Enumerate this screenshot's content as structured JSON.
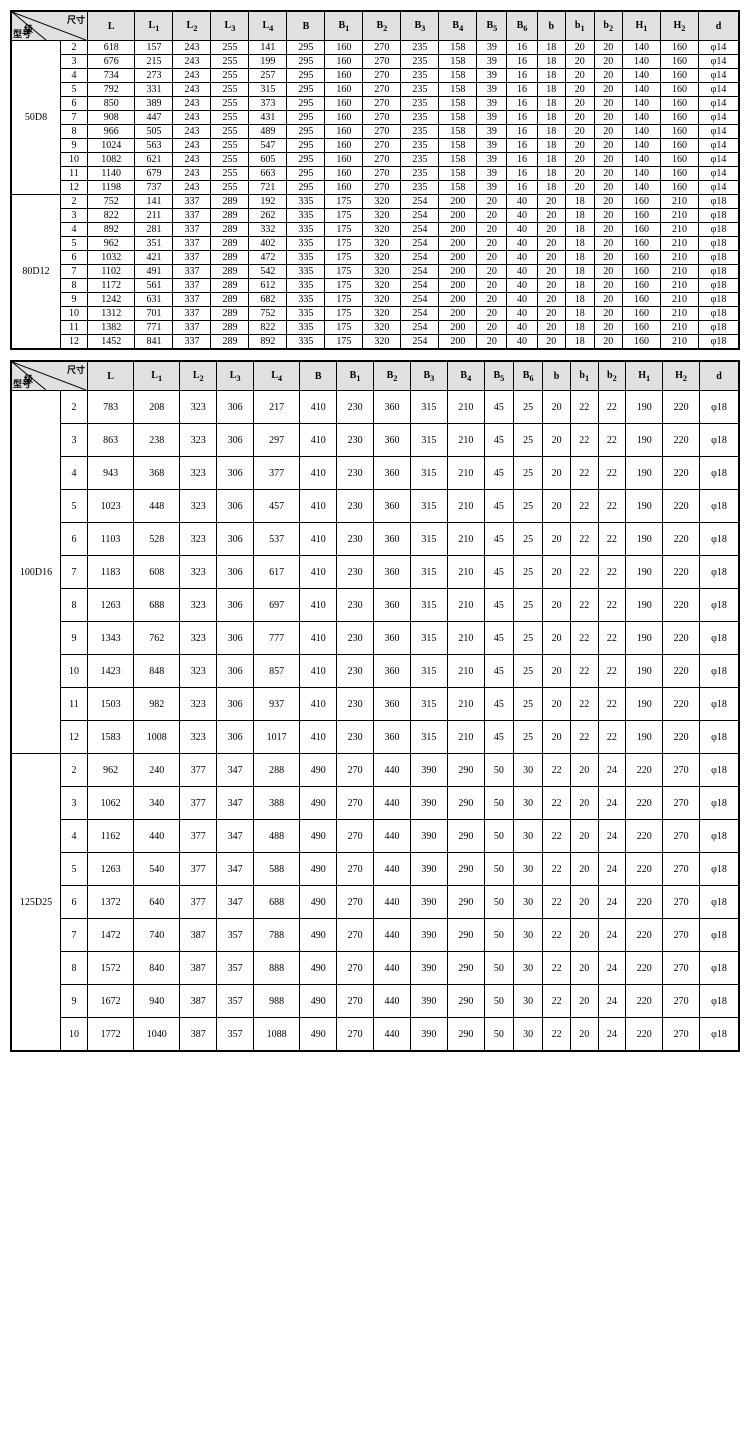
{
  "headers": {
    "diag": {
      "tr": "尺寸",
      "mid": "级",
      "bl": "型号",
      "stage": "数"
    },
    "cols": [
      "L",
      "L1",
      "L2",
      "L3",
      "L4",
      "B",
      "B1",
      "B2",
      "B3",
      "B4",
      "B5",
      "B6",
      "b",
      "b1",
      "b2",
      "H1",
      "H2",
      "d"
    ]
  },
  "table1": [
    {
      "model": "50D8",
      "stages": [
        2,
        3,
        4,
        5,
        6,
        7,
        8,
        9,
        10,
        11,
        12
      ],
      "rows": [
        [
          618,
          157,
          243,
          255,
          141,
          295,
          160,
          270,
          235,
          158,
          39,
          16,
          18,
          20,
          20,
          140,
          160,
          "φ14"
        ],
        [
          676,
          215,
          243,
          255,
          199,
          295,
          160,
          270,
          235,
          158,
          39,
          16,
          18,
          20,
          20,
          140,
          160,
          "φ14"
        ],
        [
          734,
          273,
          243,
          255,
          257,
          295,
          160,
          270,
          235,
          158,
          39,
          16,
          18,
          20,
          20,
          140,
          160,
          "φ14"
        ],
        [
          792,
          331,
          243,
          255,
          315,
          295,
          160,
          270,
          235,
          158,
          39,
          16,
          18,
          20,
          20,
          140,
          160,
          "φ14"
        ],
        [
          850,
          389,
          243,
          255,
          373,
          295,
          160,
          270,
          235,
          158,
          39,
          16,
          18,
          20,
          20,
          140,
          160,
          "φ14"
        ],
        [
          908,
          447,
          243,
          255,
          431,
          295,
          160,
          270,
          235,
          158,
          39,
          16,
          18,
          20,
          20,
          140,
          160,
          "φ14"
        ],
        [
          966,
          505,
          243,
          255,
          489,
          295,
          160,
          270,
          235,
          158,
          39,
          16,
          18,
          20,
          20,
          140,
          160,
          "φ14"
        ],
        [
          1024,
          563,
          243,
          255,
          547,
          295,
          160,
          270,
          235,
          158,
          39,
          16,
          18,
          20,
          20,
          140,
          160,
          "φ14"
        ],
        [
          1082,
          621,
          243,
          255,
          605,
          295,
          160,
          270,
          235,
          158,
          39,
          16,
          18,
          20,
          20,
          140,
          160,
          "φ14"
        ],
        [
          1140,
          679,
          243,
          255,
          663,
          295,
          160,
          270,
          235,
          158,
          39,
          16,
          18,
          20,
          20,
          140,
          160,
          "φ14"
        ],
        [
          1198,
          737,
          243,
          255,
          721,
          295,
          160,
          270,
          235,
          158,
          39,
          16,
          18,
          20,
          20,
          140,
          160,
          "φ14"
        ]
      ]
    },
    {
      "model": "80D12",
      "stages": [
        2,
        3,
        4,
        5,
        6,
        7,
        8,
        9,
        10,
        11,
        12
      ],
      "rows": [
        [
          752,
          141,
          337,
          289,
          192,
          335,
          175,
          320,
          254,
          200,
          20,
          40,
          20,
          18,
          20,
          160,
          210,
          "φ18"
        ],
        [
          822,
          211,
          337,
          289,
          262,
          335,
          175,
          320,
          254,
          200,
          20,
          40,
          20,
          18,
          20,
          160,
          210,
          "φ18"
        ],
        [
          892,
          281,
          337,
          289,
          332,
          335,
          175,
          320,
          254,
          200,
          20,
          40,
          20,
          18,
          20,
          160,
          210,
          "φ18"
        ],
        [
          962,
          351,
          337,
          289,
          402,
          335,
          175,
          320,
          254,
          200,
          20,
          40,
          20,
          18,
          20,
          160,
          210,
          "φ18"
        ],
        [
          1032,
          421,
          337,
          289,
          472,
          335,
          175,
          320,
          254,
          200,
          20,
          40,
          20,
          18,
          20,
          160,
          210,
          "φ18"
        ],
        [
          1102,
          491,
          337,
          289,
          542,
          335,
          175,
          320,
          254,
          200,
          20,
          40,
          20,
          18,
          20,
          160,
          210,
          "φ18"
        ],
        [
          1172,
          561,
          337,
          289,
          612,
          335,
          175,
          320,
          254,
          200,
          20,
          40,
          20,
          18,
          20,
          160,
          210,
          "φ18"
        ],
        [
          1242,
          631,
          337,
          289,
          682,
          335,
          175,
          320,
          254,
          200,
          20,
          40,
          20,
          18,
          20,
          160,
          210,
          "φ18"
        ],
        [
          1312,
          701,
          337,
          289,
          752,
          335,
          175,
          320,
          254,
          200,
          20,
          40,
          20,
          18,
          20,
          160,
          210,
          "φ18"
        ],
        [
          1382,
          771,
          337,
          289,
          822,
          335,
          175,
          320,
          254,
          200,
          20,
          40,
          20,
          18,
          20,
          160,
          210,
          "φ18"
        ],
        [
          1452,
          841,
          337,
          289,
          892,
          335,
          175,
          320,
          254,
          200,
          20,
          40,
          20,
          18,
          20,
          160,
          210,
          "φ18"
        ]
      ]
    }
  ],
  "table2": [
    {
      "model": "100D16",
      "stages": [
        2,
        3,
        4,
        5,
        6,
        7,
        8,
        9,
        10,
        11,
        12
      ],
      "wide": true,
      "rows": [
        [
          783,
          208,
          323,
          306,
          217,
          410,
          230,
          360,
          315,
          210,
          45,
          25,
          20,
          22,
          22,
          190,
          220,
          "φ18"
        ],
        [
          863,
          238,
          323,
          306,
          297,
          410,
          230,
          360,
          315,
          210,
          45,
          25,
          20,
          22,
          22,
          190,
          220,
          "φ18"
        ],
        [
          943,
          368,
          323,
          306,
          377,
          410,
          230,
          360,
          315,
          210,
          45,
          25,
          20,
          22,
          22,
          190,
          220,
          "φ18"
        ],
        [
          1023,
          448,
          323,
          306,
          457,
          410,
          230,
          360,
          315,
          210,
          45,
          25,
          20,
          22,
          22,
          190,
          220,
          "φ18"
        ],
        [
          1103,
          528,
          323,
          306,
          537,
          410,
          230,
          360,
          315,
          210,
          45,
          25,
          20,
          22,
          22,
          190,
          220,
          "φ18"
        ],
        [
          1183,
          608,
          323,
          306,
          617,
          410,
          230,
          360,
          315,
          210,
          45,
          25,
          20,
          22,
          22,
          190,
          220,
          "φ18"
        ],
        [
          1263,
          688,
          323,
          306,
          697,
          410,
          230,
          360,
          315,
          210,
          45,
          25,
          20,
          22,
          22,
          190,
          220,
          "φ18"
        ],
        [
          1343,
          762,
          323,
          306,
          777,
          410,
          230,
          360,
          315,
          210,
          45,
          25,
          20,
          22,
          22,
          190,
          220,
          "φ18"
        ],
        [
          1423,
          848,
          323,
          306,
          857,
          410,
          230,
          360,
          315,
          210,
          45,
          25,
          20,
          22,
          22,
          190,
          220,
          "φ18"
        ],
        [
          1503,
          982,
          323,
          306,
          937,
          410,
          230,
          360,
          315,
          210,
          45,
          25,
          20,
          22,
          22,
          190,
          220,
          "φ18"
        ],
        [
          1583,
          1008,
          323,
          306,
          1017,
          410,
          230,
          360,
          315,
          210,
          45,
          25,
          20,
          22,
          22,
          190,
          220,
          "φ18"
        ]
      ]
    },
    {
      "model": "125D25",
      "stages": [
        2,
        3,
        4,
        5,
        6,
        7,
        8,
        9,
        10
      ],
      "wide": true,
      "rows": [
        [
          962,
          240,
          377,
          347,
          288,
          490,
          270,
          440,
          390,
          290,
          50,
          30,
          22,
          20,
          24,
          220,
          270,
          "φ18"
        ],
        [
          1062,
          340,
          377,
          347,
          388,
          490,
          270,
          440,
          390,
          290,
          50,
          30,
          22,
          20,
          24,
          220,
          270,
          "φ18"
        ],
        [
          1162,
          440,
          377,
          347,
          488,
          490,
          270,
          440,
          390,
          290,
          50,
          30,
          22,
          20,
          24,
          220,
          270,
          "φ18"
        ],
        [
          1263,
          540,
          377,
          347,
          588,
          490,
          270,
          440,
          390,
          290,
          50,
          30,
          22,
          20,
          24,
          220,
          270,
          "φ18"
        ],
        [
          1372,
          640,
          377,
          347,
          688,
          490,
          270,
          440,
          390,
          290,
          50,
          30,
          22,
          20,
          24,
          220,
          270,
          "φ18"
        ],
        [
          1472,
          740,
          387,
          357,
          788,
          490,
          270,
          440,
          390,
          290,
          50,
          30,
          22,
          20,
          24,
          220,
          270,
          "φ18"
        ],
        [
          1572,
          840,
          387,
          357,
          888,
          490,
          270,
          440,
          390,
          290,
          50,
          30,
          22,
          20,
          24,
          220,
          270,
          "φ18"
        ],
        [
          1672,
          940,
          387,
          357,
          988,
          490,
          270,
          440,
          390,
          290,
          50,
          30,
          22,
          20,
          24,
          220,
          270,
          "φ18"
        ],
        [
          1772,
          1040,
          387,
          357,
          1088,
          490,
          270,
          440,
          390,
          290,
          50,
          30,
          22,
          20,
          24,
          220,
          270,
          "φ18"
        ]
      ]
    }
  ]
}
